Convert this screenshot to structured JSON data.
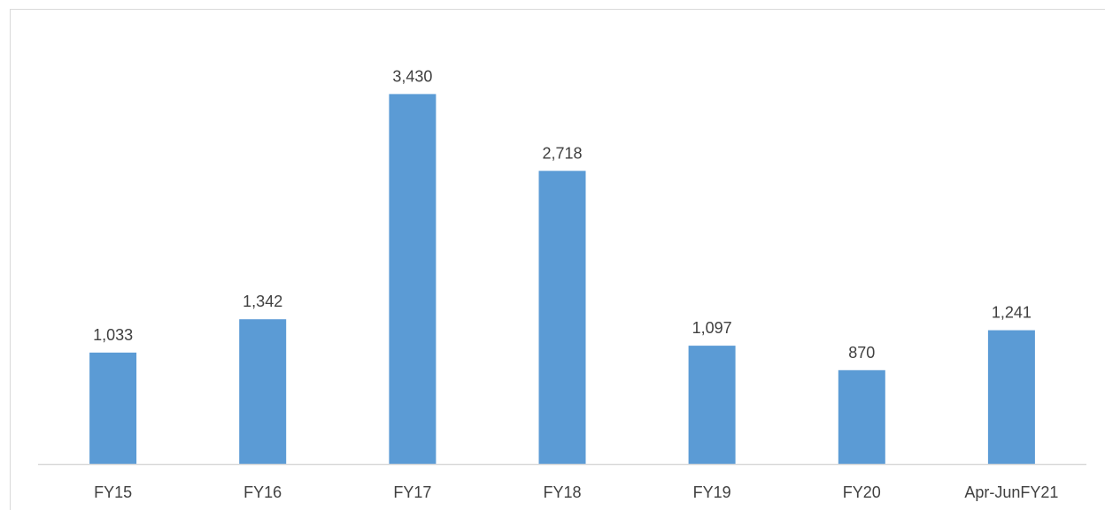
{
  "chart_data": {
    "type": "bar",
    "categories": [
      "FY15",
      "FY16",
      "FY17",
      "FY18",
      "FY19",
      "FY20",
      "Apr-JunFY21"
    ],
    "values": [
      1033,
      1342,
      3430,
      2718,
      1097,
      870,
      1241
    ],
    "value_labels": [
      "1,033",
      "1,342",
      "3,430",
      "2,718",
      "1,097",
      "870",
      "1,241"
    ],
    "title": "",
    "xlabel": "",
    "ylabel": "",
    "ylim": [
      0,
      3450
    ],
    "grid": false,
    "legend": "none",
    "colors": {
      "bar": "#5b9bd5",
      "axis": "#d9d9d9",
      "text": "#404040"
    }
  }
}
